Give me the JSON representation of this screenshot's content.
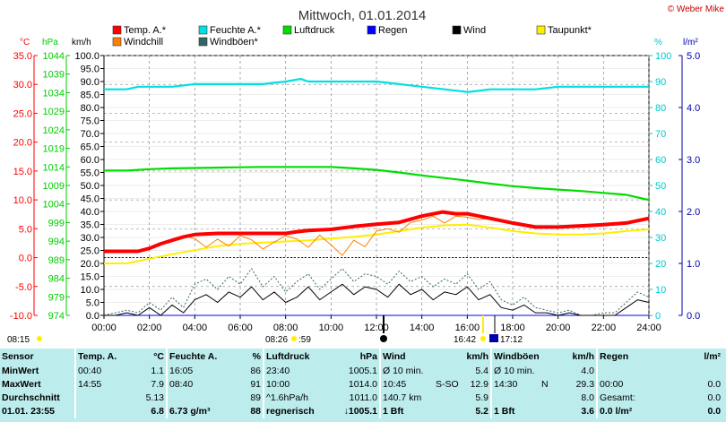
{
  "header": {
    "title": "Mittwoch, 01.01.2014",
    "copyright": "© Weber Mike"
  },
  "legend": [
    {
      "label": "Temp. A.*",
      "color": "#ff0000"
    },
    {
      "label": "Feuchte A.*",
      "color": "#00e0e0"
    },
    {
      "label": "Luftdruck",
      "color": "#00dd00"
    },
    {
      "label": "Regen",
      "color": "#0000ff"
    },
    {
      "label": "Wind",
      "color": "#000000"
    },
    {
      "label": "Taupunkt*",
      "color": "#ffee00"
    },
    {
      "label": "Windchill",
      "color": "#ff8000"
    },
    {
      "label": "Windböen*",
      "color": "#336666"
    }
  ],
  "axes": {
    "temp": {
      "unit": "°C",
      "min": -10,
      "max": 35,
      "ticks": [
        "35.0",
        "30.0",
        "25.0",
        "20.0",
        "15.0",
        "10.0",
        "5.0",
        "0.0",
        "-5.0",
        "-10.0"
      ],
      "color": "#ff0000"
    },
    "pressure": {
      "unit": "hPa",
      "min": 974,
      "max": 1044,
      "ticks": [
        "1044",
        "1039",
        "1034",
        "1029",
        "1024",
        "1019",
        "1014",
        "1009",
        "1004",
        "999",
        "994",
        "989",
        "984",
        "979",
        "974"
      ],
      "color": "#00cc00"
    },
    "wind": {
      "unit": "km/h",
      "min": 0,
      "max": 100,
      "ticks": [
        "100.0",
        "95.0",
        "90.0",
        "85.0",
        "80.0",
        "75.0",
        "70.0",
        "65.0",
        "60.0",
        "55.0",
        "50.0",
        "45.0",
        "40.0",
        "35.0",
        "30.0",
        "25.0",
        "20.0",
        "15.0",
        "10.0",
        "5.0",
        "0.0"
      ],
      "color": "#000000"
    },
    "humidity": {
      "unit": "%",
      "min": 0,
      "max": 100,
      "ticks": [
        "100",
        "90",
        "80",
        "70",
        "60",
        "50",
        "40",
        "30",
        "20",
        "10",
        "0"
      ],
      "color": "#00c8c8"
    },
    "rain": {
      "unit": "l/m²",
      "min": 0,
      "max": 5,
      "ticks": [
        "5.0",
        "4.0",
        "3.0",
        "2.0",
        "1.0",
        "0.0"
      ],
      "color": "#0000aa"
    },
    "time": {
      "ticks": [
        "00:00",
        "02:00",
        "04:00",
        "06:00",
        "08:00",
        "10:00",
        "12:00",
        "14:00",
        "16:00",
        "18:00",
        "20:00",
        "22:00",
        "24:00"
      ]
    }
  },
  "sun": {
    "sunrise": "08:15",
    "sunrise_marker": "08:26",
    "sunrise_extra": ":59",
    "sunset": "16:42",
    "sunset_marker": "17:12"
  },
  "chart_data": {
    "type": "line",
    "x_unit": "hours",
    "grid": true,
    "series": [
      {
        "name": "Temp. A.*",
        "axis": "temp",
        "color": "#ff0000",
        "x": [
          0,
          1,
          1.5,
          2,
          2.5,
          3,
          3.5,
          4,
          5,
          6,
          7,
          8,
          8.5,
          9,
          10,
          11,
          12,
          13,
          14,
          14.92,
          15.5,
          16,
          17,
          18,
          19,
          20,
          21,
          22,
          23,
          24
        ],
        "y": [
          1.1,
          1.1,
          1.1,
          1.6,
          2.4,
          3.0,
          3.6,
          4.0,
          4.2,
          4.2,
          4.2,
          4.2,
          4.5,
          4.7,
          4.9,
          5.4,
          5.8,
          6.1,
          7.2,
          7.9,
          7.6,
          7.6,
          6.8,
          6.0,
          5.3,
          5.3,
          5.5,
          5.7,
          6.0,
          6.8
        ]
      },
      {
        "name": "Feuchte A.*",
        "axis": "humidity",
        "color": "#00e0e0",
        "x": [
          0,
          1,
          1.5,
          2,
          3,
          4,
          5,
          6,
          7,
          8,
          8.67,
          9,
          10,
          11,
          12,
          13,
          14,
          15,
          16,
          16.08,
          17,
          18,
          19,
          20,
          21,
          22,
          23,
          24
        ],
        "y": [
          87,
          87,
          88,
          88,
          88,
          89,
          89,
          89,
          89,
          90,
          91,
          90,
          90,
          90,
          90,
          89,
          88,
          87,
          86,
          86,
          87,
          87,
          87,
          88,
          88,
          88,
          88,
          88
        ]
      },
      {
        "name": "Luftdruck",
        "axis": "pressure",
        "color": "#00dd00",
        "x": [
          0,
          1,
          2,
          3,
          4,
          5,
          6,
          7,
          8,
          9,
          10,
          11,
          12,
          13,
          14,
          15,
          16,
          17,
          18,
          19,
          20,
          21,
          22,
          23,
          24
        ],
        "y": [
          1013,
          1013,
          1013.4,
          1013.6,
          1013.7,
          1013.8,
          1013.9,
          1014.0,
          1014,
          1014,
          1014,
          1013.6,
          1013.2,
          1012.5,
          1011.7,
          1011.0,
          1010.3,
          1009.5,
          1008.8,
          1008.3,
          1007.9,
          1007.5,
          1007.0,
          1006.5,
          1005.1
        ]
      },
      {
        "name": "Taupunkt*",
        "axis": "temp",
        "color": "#ffee00",
        "x": [
          0,
          1,
          2,
          3,
          4,
          5,
          6,
          7,
          8,
          9,
          10,
          11,
          12,
          13,
          14,
          15,
          16,
          17,
          18,
          19,
          20,
          21,
          22,
          23,
          24
        ],
        "y": [
          -1.0,
          -1.0,
          -0.2,
          0.6,
          1.3,
          2.0,
          2.4,
          2.6,
          2.8,
          3.0,
          3.3,
          3.6,
          4.0,
          4.6,
          5.2,
          5.6,
          5.7,
          5.2,
          4.6,
          4.2,
          4.0,
          4.0,
          4.2,
          4.6,
          4.9
        ]
      },
      {
        "name": "Windchill",
        "axis": "temp",
        "color": "#ff8000",
        "x": [
          3,
          3.5,
          4,
          4.5,
          5,
          5.5,
          6,
          6.5,
          7,
          7.5,
          8,
          8.5,
          9,
          9.5,
          10,
          10.5,
          11,
          11.5,
          12,
          12.5,
          13,
          13.5,
          14,
          14.5,
          15,
          15.5,
          16,
          16.5,
          17
        ],
        "y": [
          2.8,
          3.8,
          3.3,
          1.8,
          3.2,
          2.0,
          3.8,
          3.1,
          1.5,
          2.7,
          3.8,
          3.2,
          1.8,
          3.9,
          2.2,
          0.4,
          3.0,
          1.9,
          4.6,
          5.0,
          4.4,
          6.1,
          6.5,
          7.2,
          6.0,
          7.2,
          7.0,
          6.6,
          6.8
        ]
      },
      {
        "name": "Wind",
        "axis": "wind",
        "color": "#000000",
        "x": [
          0,
          0.5,
          1,
          1.5,
          2,
          2.5,
          3,
          3.5,
          4,
          4.5,
          5,
          5.5,
          6,
          6.5,
          7,
          7.5,
          8,
          8.5,
          9,
          9.5,
          10,
          10.5,
          11,
          11.5,
          12,
          12.5,
          13,
          13.5,
          14,
          14.5,
          15,
          15.5,
          16,
          16.5,
          17,
          17.5,
          18,
          18.5,
          19,
          19.5,
          20,
          20.5,
          21,
          21.5,
          22,
          22.5,
          23,
          23.5,
          24
        ],
        "y": [
          0,
          0,
          1,
          0,
          3,
          0,
          4,
          1,
          6,
          8,
          5,
          9,
          7,
          11,
          6,
          9,
          5,
          7,
          11,
          6,
          9,
          12,
          8,
          11,
          10,
          7,
          12,
          8,
          10,
          6,
          9,
          8,
          11,
          6,
          8,
          3,
          2,
          4,
          1,
          1,
          0,
          1,
          0,
          0,
          0,
          0,
          3,
          6,
          5
        ]
      },
      {
        "name": "Windböen*",
        "axis": "wind",
        "color": "#336666",
        "x": [
          0,
          0.5,
          1,
          1.5,
          2,
          2.5,
          3,
          3.5,
          4,
          4.5,
          5,
          5.5,
          6,
          6.5,
          7,
          7.5,
          8,
          8.5,
          9,
          9.5,
          10,
          10.5,
          11,
          11.5,
          12,
          12.5,
          13,
          13.5,
          14,
          14.5,
          15,
          15.5,
          16,
          16.5,
          17,
          17.5,
          18,
          18.5,
          19,
          19.5,
          20,
          20.5,
          21,
          21.5,
          22,
          22.5,
          23,
          23.5,
          24
        ],
        "y": [
          0,
          1,
          2,
          1,
          5,
          2,
          7,
          3,
          12,
          14,
          10,
          15,
          12,
          18,
          11,
          15,
          9,
          13,
          16,
          10,
          14,
          18,
          13,
          16,
          15,
          12,
          17,
          13,
          15,
          11,
          14,
          12,
          16,
          10,
          13,
          6,
          4,
          7,
          3,
          2,
          1,
          2,
          0,
          0,
          1,
          1,
          5,
          9,
          7
        ]
      },
      {
        "name": "Regen",
        "axis": "rain",
        "color": "#0000ff",
        "x": [
          0,
          24
        ],
        "y": [
          0,
          0
        ]
      }
    ]
  },
  "stats": {
    "headers": [
      "Sensor",
      "Temp. A.",
      "°C",
      "Feuchte A.",
      "%",
      "Luftdruck",
      "hPa",
      "Wind",
      "km/h",
      "Windböen",
      "km/h",
      "Regen",
      "l/m²"
    ],
    "rows": [
      [
        "MinWert",
        "00:40",
        "1.1",
        "16:05",
        "86",
        "23:40",
        "1005.1",
        "Ø 10 min.",
        "",
        "5.4",
        "Ø 10 min.",
        "",
        "4.0",
        "",
        "",
        ""
      ],
      [
        "MaxWert",
        "14:55",
        "7.9",
        "08:40",
        "91",
        "10:00",
        "1014.0",
        "10:45",
        "S-SO",
        "12.9",
        "14:30",
        "N",
        "29.3",
        "00:00",
        "",
        "0.0"
      ],
      [
        "Durchschnitt",
        "",
        "5.13",
        "",
        "89",
        "^1.6hPa/h",
        "1011.0",
        "140.7 km",
        "",
        "5.9",
        "",
        "",
        "8.0",
        "Gesamt:",
        "",
        "0.0"
      ],
      [
        "01.01. 23:55",
        "",
        "6.8",
        "6.73 g/m³",
        "88",
        "regnerisch",
        "↓1005.1",
        "1 Bft",
        "",
        "5.2",
        "1 Bft",
        "",
        "3.6",
        "0.0 l/m²",
        "",
        "0.0"
      ]
    ]
  }
}
